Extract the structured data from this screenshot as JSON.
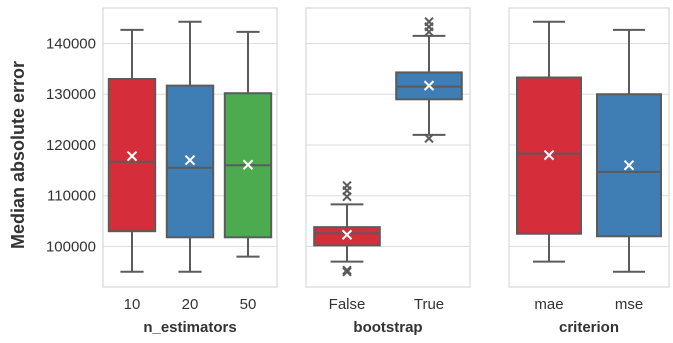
{
  "ylabel": "Median absolute error",
  "y_ticks": [
    100000,
    110000,
    120000,
    130000,
    140000
  ],
  "ylim": [
    92000,
    147000
  ],
  "colors": {
    "red": "#d62d3b",
    "blue": "#3f7db5",
    "green": "#4caa4f",
    "line": "#5b5b5b",
    "grid": "#dddddd",
    "frame": "#d0d0d0",
    "mean_marker": "#ffffff",
    "outlier": "#5b5b5b"
  },
  "chart_data": [
    {
      "type": "box",
      "xlabel": "n_estimators",
      "categories": [
        "10",
        "20",
        "50"
      ],
      "boxes": [
        {
          "color": "red",
          "whislo": 95000,
          "q1": 103000,
          "med": 116700,
          "q3": 133000,
          "whishi": 142700,
          "mean": 117800,
          "outliers": []
        },
        {
          "color": "blue",
          "whislo": 95000,
          "q1": 101800,
          "med": 115500,
          "q3": 131700,
          "whishi": 144300,
          "mean": 117000,
          "outliers": []
        },
        {
          "color": "green",
          "whislo": 98000,
          "q1": 101800,
          "med": 116000,
          "q3": 130200,
          "whishi": 142300,
          "mean": 116100,
          "outliers": []
        }
      ]
    },
    {
      "type": "box",
      "xlabel": "bootstrap",
      "categories": [
        "False",
        "True"
      ],
      "boxes": [
        {
          "color": "red",
          "whislo": 97000,
          "q1": 100200,
          "med": 102600,
          "q3": 103800,
          "whishi": 108300,
          "mean": 102300,
          "outliers": [
            95000,
            95300,
            109800,
            111000,
            112000
          ]
        },
        {
          "color": "blue",
          "whislo": 122000,
          "q1": 129000,
          "med": 131500,
          "q3": 134300,
          "whishi": 141500,
          "mean": 131700,
          "outliers": [
            121300,
            142300,
            143300,
            144300
          ]
        }
      ]
    },
    {
      "type": "box",
      "xlabel": "criterion",
      "categories": [
        "mae",
        "mse"
      ],
      "boxes": [
        {
          "color": "red",
          "whislo": 97000,
          "q1": 102500,
          "med": 118300,
          "q3": 133300,
          "whishi": 144300,
          "mean": 118000,
          "outliers": []
        },
        {
          "color": "blue",
          "whislo": 95000,
          "q1": 102000,
          "med": 114700,
          "q3": 130000,
          "whishi": 142700,
          "mean": 116000,
          "outliers": []
        }
      ]
    }
  ]
}
